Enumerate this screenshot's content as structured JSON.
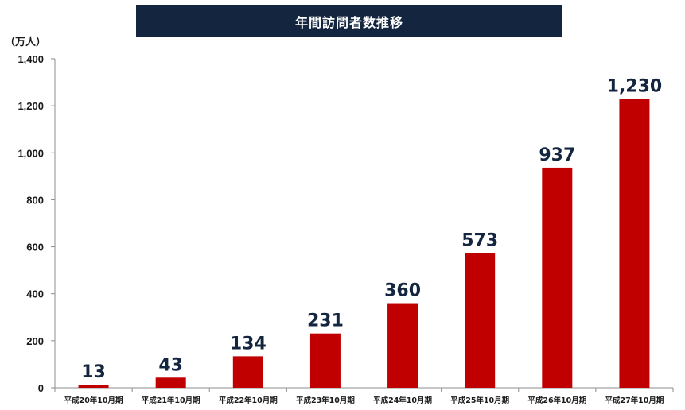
{
  "chart_data": {
    "type": "bar",
    "title": "年間訪問者数推移",
    "ylabel": "（万人）",
    "xlabel": "",
    "ylim": [
      0,
      1400
    ],
    "yticks": [
      0,
      200,
      400,
      600,
      800,
      1000,
      1200,
      1400
    ],
    "ytick_labels": [
      "0",
      "200",
      "400",
      "600",
      "800",
      "1,000",
      "1,200",
      "1,400"
    ],
    "categories": [
      "平成20年10月期",
      "平成21年10月期",
      "平成22年10月期",
      "平成23年10月期",
      "平成24年10月期",
      "平成25年10月期",
      "平成26年10月期",
      "平成27年10月期"
    ],
    "values": [
      13,
      43,
      134,
      231,
      360,
      573,
      937,
      1230
    ],
    "data_labels": [
      "13",
      "43",
      "134",
      "231",
      "360",
      "573",
      "937",
      "1,230"
    ],
    "grid": false,
    "colors": {
      "bar": "#c00000",
      "title_bg": "#13253f",
      "data_label": "#13253f"
    }
  }
}
